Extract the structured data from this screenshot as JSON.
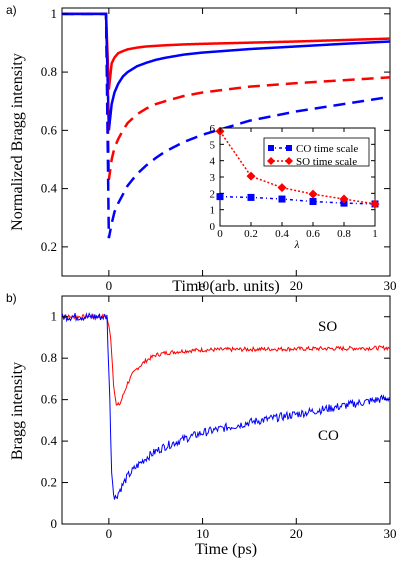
{
  "chart_data": [
    {
      "panel": "a)",
      "type": "line",
      "xlabel": "Time (arb. units)",
      "ylabel": "Normalized Bragg intensity",
      "xlim": [
        -5,
        30
      ],
      "ylim": [
        0.1,
        1.02
      ],
      "xticks": [
        0,
        10,
        20,
        30
      ],
      "yticks": [
        0.2,
        0.4,
        0.6,
        0.8,
        1
      ],
      "xticklabels": [
        "0",
        "10",
        "20",
        "30"
      ],
      "yticklabels": [
        "0.2",
        "0.4",
        "0.6",
        "0.8",
        "1"
      ],
      "series": [
        {
          "color": "#ff0000",
          "dash": "solid",
          "x": [
            -5,
            -0.3,
            0,
            0.3,
            0.6,
            1,
            1.5,
            2,
            3,
            4,
            5,
            6,
            8,
            10,
            15,
            20,
            25,
            30
          ],
          "y": [
            1.0,
            1.0,
            0.74,
            0.83,
            0.85,
            0.865,
            0.872,
            0.878,
            0.884,
            0.888,
            0.89,
            0.892,
            0.895,
            0.897,
            0.901,
            0.905,
            0.91,
            0.915
          ]
        },
        {
          "color": "#0000ff",
          "dash": "solid",
          "x": [
            -5,
            -0.3,
            0,
            0.3,
            0.6,
            1,
            1.5,
            2,
            3,
            4,
            5,
            6,
            8,
            10,
            15,
            20,
            25,
            30
          ],
          "y": [
            1.0,
            1.0,
            0.6,
            0.69,
            0.73,
            0.76,
            0.785,
            0.8,
            0.82,
            0.832,
            0.842,
            0.849,
            0.86,
            0.867,
            0.879,
            0.888,
            0.897,
            0.905
          ]
        },
        {
          "color": "#ff0000",
          "dash": "dashed",
          "x": [
            -5,
            -0.3,
            0,
            0.3,
            0.6,
            1,
            1.5,
            2,
            3,
            4,
            5,
            6,
            8,
            10,
            15,
            20,
            25,
            30
          ],
          "y": [
            1.0,
            1.0,
            0.43,
            0.5,
            0.54,
            0.57,
            0.6,
            0.625,
            0.655,
            0.675,
            0.69,
            0.7,
            0.718,
            0.73,
            0.75,
            0.762,
            0.772,
            0.782
          ]
        },
        {
          "color": "#0000ff",
          "dash": "dashed",
          "x": [
            -5,
            -0.3,
            0,
            0.3,
            0.6,
            1,
            1.5,
            2,
            3,
            4,
            5,
            6,
            8,
            10,
            15,
            20,
            25,
            30
          ],
          "y": [
            1.0,
            1.0,
            0.23,
            0.28,
            0.32,
            0.35,
            0.38,
            0.41,
            0.45,
            0.48,
            0.505,
            0.527,
            0.56,
            0.585,
            0.633,
            0.665,
            0.69,
            0.715
          ]
        }
      ],
      "inset": {
        "type": "line",
        "xlabel": "λ",
        "xlim": [
          0,
          1
        ],
        "ylim": [
          0,
          6
        ],
        "xticks": [
          0,
          0.2,
          0.4,
          0.6,
          0.8,
          1
        ],
        "yticks": [
          0,
          1,
          2,
          3,
          4,
          5,
          6
        ],
        "xticklabels": [
          "0",
          "0.2",
          "0.4",
          "0.6",
          "0.8",
          "1"
        ],
        "yticklabels": [
          "0",
          "1",
          "2",
          "3",
          "4",
          "5",
          "6"
        ],
        "legend_position": "top-right",
        "series": [
          {
            "name": "CO time scale",
            "color": "#0000ff",
            "marker": "square",
            "x": [
              0,
              0.2,
              0.4,
              0.6,
              0.8,
              1
            ],
            "y": [
              1.8,
              1.75,
              1.65,
              1.5,
              1.4,
              1.35
            ]
          },
          {
            "name": "SO time scale",
            "color": "#ff0000",
            "marker": "diamond",
            "x": [
              0,
              0.2,
              0.4,
              0.6,
              0.8,
              1
            ],
            "y": [
              5.8,
              3.05,
              2.35,
              1.95,
              1.65,
              1.35
            ]
          }
        ]
      }
    },
    {
      "panel": "b)",
      "type": "line",
      "xlabel": "Time (ps)",
      "ylabel": "Bragg intensity",
      "xlim": [
        -5,
        30
      ],
      "ylim": [
        0,
        1.1
      ],
      "xticks": [
        0,
        10,
        20,
        30
      ],
      "yticks": [
        0,
        0.2,
        0.4,
        0.6,
        0.8,
        1
      ],
      "xticklabels": [
        "0",
        "10",
        "20",
        "30"
      ],
      "yticklabels": [
        "0",
        "0.2",
        "0.4",
        "0.6",
        "0.8",
        "1"
      ],
      "series": [
        {
          "color": "#ff0000",
          "noise": 0.01,
          "x": [
            -5,
            -0.2,
            0.2,
            0.5,
            0.8,
            1.2,
            1.6,
            2,
            2.5,
            3,
            4,
            5,
            6,
            8,
            10,
            15,
            20,
            25,
            30
          ],
          "y": [
            1.0,
            1.0,
            0.9,
            0.68,
            0.57,
            0.58,
            0.63,
            0.68,
            0.72,
            0.75,
            0.79,
            0.815,
            0.825,
            0.835,
            0.84,
            0.843,
            0.845,
            0.847,
            0.85
          ]
        },
        {
          "color": "#0000ff",
          "noise": 0.02,
          "x": [
            -5,
            -0.2,
            0.1,
            0.3,
            0.6,
            1,
            1.5,
            2,
            3,
            4,
            5,
            6,
            8,
            10,
            12,
            15,
            20,
            25,
            30
          ],
          "y": [
            1.0,
            1.0,
            0.6,
            0.25,
            0.12,
            0.15,
            0.19,
            0.23,
            0.28,
            0.32,
            0.35,
            0.375,
            0.41,
            0.44,
            0.46,
            0.49,
            0.53,
            0.57,
            0.61
          ]
        }
      ],
      "annotations": [
        "SO",
        "CO"
      ]
    }
  ]
}
